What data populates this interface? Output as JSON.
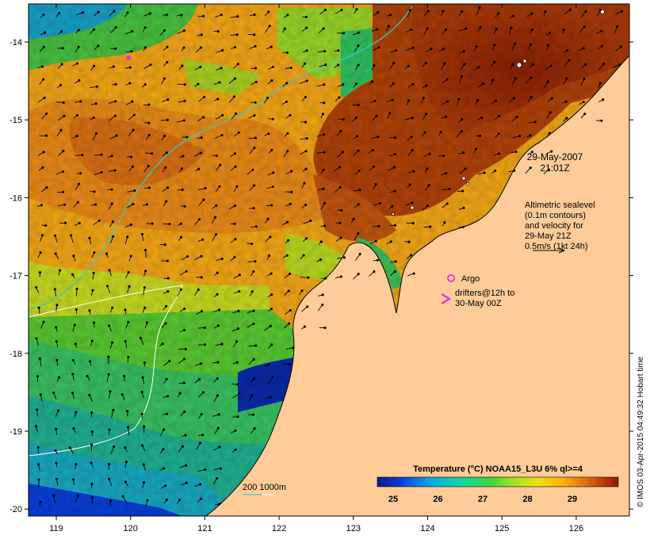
{
  "map": {
    "datetime_line1": "29-May-2007",
    "datetime_line2": "21:01Z",
    "altimetry_note": [
      "Altimetric sealevel",
      "(0.1m contours)",
      "and velocity for",
      "29-May 21Z",
      "0.5m/s (1kt 24h)"
    ],
    "argo_label": "Argo",
    "drifters_label_line1": "drifters@12h to",
    "drifters_label_line2": "30-May 00Z",
    "isobath_label": "200  1000m",
    "credit": "© IMOS 03-Apr-2015 04:49:32 Hobart time",
    "colorbar": {
      "title": "Temperature (°C) NOAA15_L3U 6% ql>=4",
      "ticks": [
        "25",
        "26",
        "27",
        "28",
        "29"
      ]
    },
    "x_ticks": [
      "119",
      "120",
      "121",
      "122",
      "123",
      "124",
      "125",
      "126"
    ],
    "y_ticks": [
      "-14",
      "-15",
      "-16",
      "-17",
      "-18",
      "-19",
      "-20"
    ],
    "colors": {
      "land": "#ffcc99",
      "warm": "#9a2a05",
      "cool": "#0a1a8a",
      "argo": "#dd33dd",
      "isobath": "#33cccc"
    }
  }
}
